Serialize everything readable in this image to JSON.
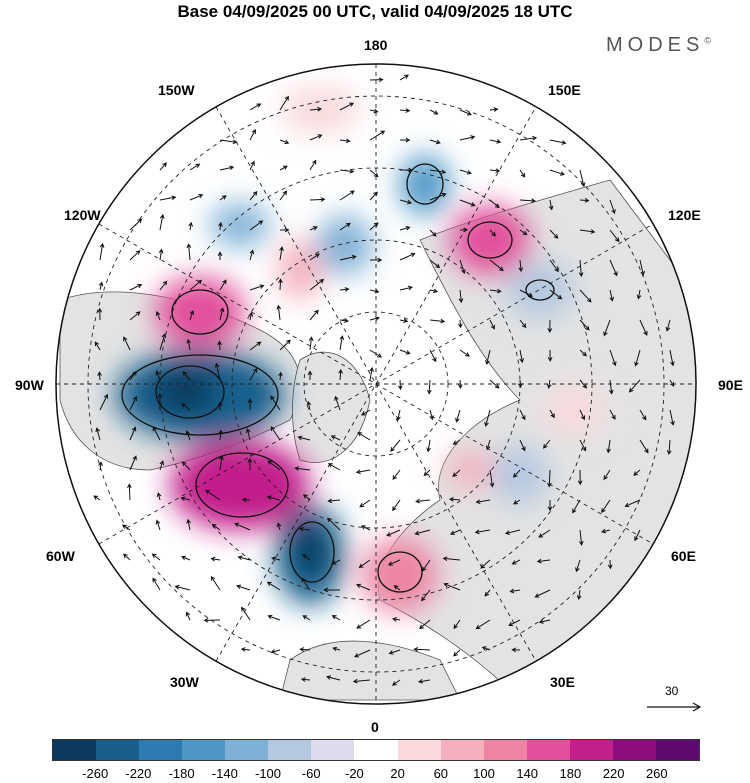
{
  "title": "Base 04/09/2025 00 UTC, valid 04/09/2025 18 UTC",
  "brand": "MODES",
  "brand_mark": "©",
  "longitude_labels": {
    "top": "180",
    "bottom": "0",
    "left": "90W",
    "right": "90E",
    "upper_left_1": "150W",
    "upper_left_2": "120W",
    "upper_right_1": "150E",
    "upper_right_2": "120E",
    "lower_left_1": "60W",
    "lower_left_2": "30W",
    "lower_right_1": "60E",
    "lower_right_2": "30E"
  },
  "vector_scale_label": "30",
  "colorbar": {
    "ticks": [
      "-260",
      "-220",
      "-180",
      "-140",
      "-100",
      "-60",
      "-20",
      "20",
      "60",
      "100",
      "140",
      "180",
      "220",
      "260"
    ],
    "colors": [
      "#0b3a5c",
      "#185f8d",
      "#2d7bb0",
      "#4e96c6",
      "#7fb1d6",
      "#b4c8e0",
      "#dcdcee",
      "#ffffff",
      "#f9d9dc",
      "#f4b1bd",
      "#ee84a4",
      "#e2509a",
      "#c21f8a",
      "#8e0d7e",
      "#5e0a70"
    ]
  },
  "colors": {
    "land": "#e3e3e3",
    "grid": "#222222",
    "coast": "#555555"
  }
}
